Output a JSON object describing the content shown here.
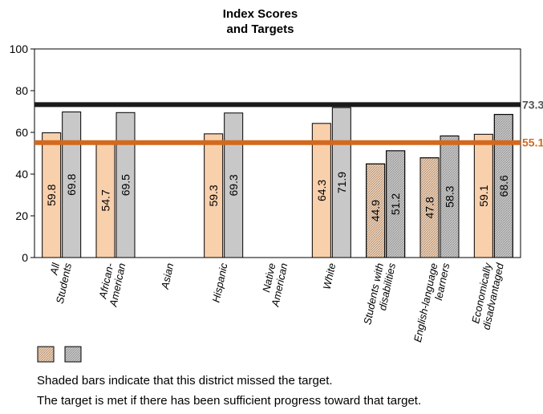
{
  "chart_data": {
    "type": "bar",
    "title_lines": [
      "Index Scores",
      "and Targets"
    ],
    "categories": [
      [
        "All",
        "Students"
      ],
      [
        "African-",
        "American"
      ],
      [
        "Asian"
      ],
      [
        "Hispanic"
      ],
      [
        "Native",
        "American"
      ],
      [
        "White"
      ],
      [
        "Students with",
        "disabilities"
      ],
      [
        "English-language",
        "learners"
      ],
      [
        "Economically",
        "disadvantaged"
      ]
    ],
    "series": [
      {
        "values": [
          59.8,
          54.7,
          null,
          59.3,
          null,
          64.3,
          44.9,
          47.8,
          59.1
        ],
        "labels": [
          "59.8",
          "54.7",
          "",
          "59.3",
          "",
          "64.3",
          "44.9",
          "47.8",
          "59.1"
        ],
        "color": "#f9d0ac",
        "shaded": [
          false,
          false,
          false,
          false,
          false,
          false,
          true,
          true,
          false
        ]
      },
      {
        "values": [
          69.8,
          69.5,
          null,
          69.3,
          null,
          71.9,
          51.2,
          58.3,
          68.6
        ],
        "labels": [
          "69.8",
          "69.5",
          "",
          "69.3",
          "",
          "71.9",
          "51.2",
          "58.3",
          "68.6"
        ],
        "color": "#c8c8c8",
        "shaded": [
          false,
          false,
          false,
          false,
          false,
          false,
          true,
          true,
          true
        ]
      }
    ],
    "reference_lines": [
      {
        "value": 73.3,
        "label": "73.3",
        "color": "#1a1a1a"
      },
      {
        "value": 55.1,
        "label": "55.1",
        "color": "#d2691e"
      }
    ],
    "ylim": [
      0,
      100
    ],
    "yticks": [
      0,
      20,
      40,
      60,
      80,
      100
    ],
    "grid": false
  },
  "legend": {
    "swatches": [
      {
        "color": "#f9d0ac",
        "shaded": true
      },
      {
        "color": "#c8c8c8",
        "shaded": true
      }
    ]
  },
  "notes": [
    "Shaded bars indicate that this district missed the target.",
    "The target is met if there has been sufficient progress toward that target."
  ]
}
